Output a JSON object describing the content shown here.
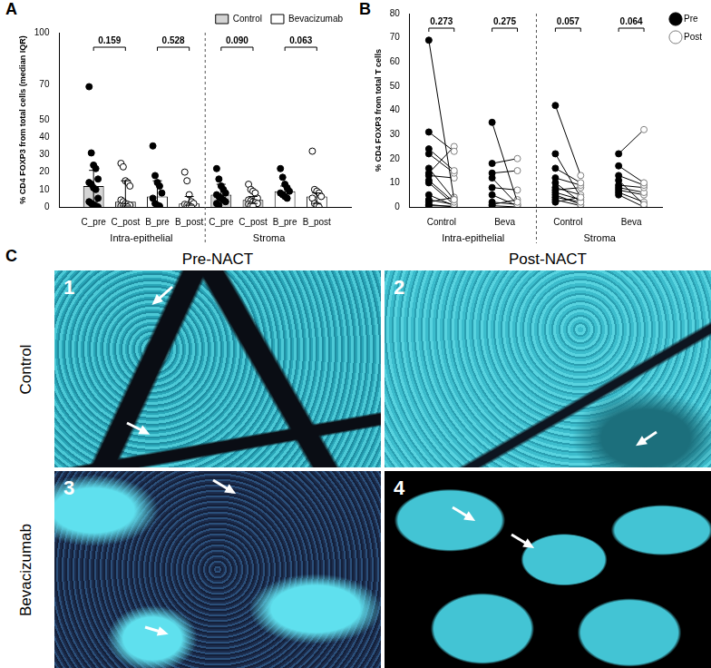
{
  "chart_data": [
    {
      "panel": "A",
      "type": "bar",
      "ylabel": "% CD4 FOXP3 from total cells (median IQR)",
      "categories": [
        "C_pre",
        "C_post",
        "B_pre",
        "B_post",
        "C_pre",
        "C_post",
        "B_pre",
        "B_post"
      ],
      "group_labels": [
        "Intra-epithelial",
        "Stroma"
      ],
      "series": [
        {
          "name": "Control",
          "color": "#d4d4d4"
        },
        {
          "name": "Bevacizumab",
          "color": "#ffffff"
        }
      ],
      "bar_series": [
        "Control",
        "Control",
        "Bevacizumab",
        "Bevacizumab",
        "Control",
        "Control",
        "Bevacizumab",
        "Bevacizumab"
      ],
      "values": [
        12,
        3,
        6,
        2,
        7,
        4,
        9,
        6
      ],
      "iqr": [
        [
          3,
          21
        ],
        [
          0.5,
          15
        ],
        [
          1,
          15
        ],
        [
          1,
          6
        ],
        [
          4,
          13
        ],
        [
          2,
          6
        ],
        [
          6,
          12
        ],
        [
          2,
          8
        ]
      ],
      "points": [
        [
          69,
          31,
          24,
          22,
          16,
          14,
          13,
          11,
          10,
          5,
          3,
          2,
          1,
          0.5,
          0
        ],
        [
          25,
          23,
          15,
          14,
          12,
          4,
          3,
          2,
          1.5,
          1,
          0.5,
          0.3,
          0.2,
          0
        ],
        [
          35,
          18,
          14,
          12,
          8,
          5,
          2,
          1,
          0.5
        ],
        [
          20,
          15,
          7,
          3,
          2,
          1.5,
          1,
          0.5,
          0
        ],
        [
          22,
          16,
          12,
          10,
          8,
          7,
          6,
          5,
          4,
          3,
          2,
          1
        ],
        [
          13,
          10,
          9,
          8,
          5,
          4,
          3.5,
          3,
          2.5,
          2,
          1.5,
          1,
          0.5
        ],
        [
          22,
          17,
          13,
          11,
          9,
          8,
          7,
          6,
          5
        ],
        [
          32,
          10,
          9,
          8,
          6,
          5,
          2,
          1,
          0
        ]
      ],
      "markers": [
        "filled",
        "open",
        "filled",
        "open",
        "filled",
        "open",
        "filled",
        "open"
      ],
      "comparisons": [
        {
          "categories": [
            0,
            1
          ],
          "p": 0.159
        },
        {
          "categories": [
            2,
            3
          ],
          "p": 0.528
        },
        {
          "categories": [
            4,
            5
          ],
          "p": {
            "value": 0.09,
            "label": "0.090"
          }
        },
        {
          "categories": [
            6,
            7
          ],
          "p": 0.063
        }
      ],
      "ylim": [
        0,
        100
      ],
      "yticks": [
        0,
        10,
        20,
        30,
        40,
        50,
        70,
        100
      ],
      "grid": false,
      "legend": "top right"
    },
    {
      "panel": "B",
      "type": "line",
      "ylabel": "% CD4 FOXP3 from total T cells",
      "categories": [
        "Control",
        "Beva",
        "Control",
        "Beva"
      ],
      "group_labels": [
        "Intra-epithelial",
        "Stroma"
      ],
      "series": [
        {
          "name": "Pre",
          "color": "#000000",
          "marker": "filled"
        },
        {
          "name": "Post",
          "color": "#808080",
          "marker": "open"
        }
      ],
      "pairs": [
        [
          [
            69,
            3
          ],
          [
            31,
            23
          ],
          [
            24,
            15
          ],
          [
            22,
            14
          ],
          [
            16,
            3
          ],
          [
            14,
            25
          ],
          [
            13,
            12
          ],
          [
            11,
            2
          ],
          [
            10,
            1
          ],
          [
            5,
            0.5
          ],
          [
            3,
            1
          ],
          [
            2,
            4
          ],
          [
            1,
            0
          ],
          [
            0.5,
            0.3
          ]
        ],
        [
          [
            35,
            2
          ],
          [
            18,
            20
          ],
          [
            14,
            15
          ],
          [
            12,
            1
          ],
          [
            8,
            7
          ],
          [
            5,
            0.5
          ],
          [
            2,
            1
          ],
          [
            1,
            3
          ],
          [
            0.5,
            0
          ]
        ],
        [
          [
            42,
            13
          ],
          [
            22,
            4
          ],
          [
            16,
            10
          ],
          [
            12,
            9
          ],
          [
            10,
            2
          ],
          [
            8,
            5
          ],
          [
            7,
            8
          ],
          [
            6,
            3
          ],
          [
            5,
            1
          ],
          [
            4,
            2
          ],
          [
            3,
            0.5
          ],
          [
            2,
            4
          ]
        ],
        [
          [
            22,
            32
          ],
          [
            17,
            10
          ],
          [
            13,
            9
          ],
          [
            11,
            1
          ],
          [
            9,
            8
          ],
          [
            8,
            6
          ],
          [
            7,
            5
          ],
          [
            6,
            2
          ],
          [
            5,
            0
          ]
        ]
      ],
      "comparisons": [
        {
          "category": 0,
          "p": 0.273
        },
        {
          "category": 1,
          "p": 0.275
        },
        {
          "category": 2,
          "p": 0.057
        },
        {
          "category": 3,
          "p": 0.064
        }
      ],
      "ylim": [
        0,
        80
      ],
      "yticks": [
        0,
        10,
        20,
        30,
        40,
        50,
        60,
        70,
        80
      ],
      "grid": false,
      "legend": "right"
    }
  ],
  "image_panel": {
    "panel": "C",
    "columns": [
      "Pre-NACT",
      "Post-NACT"
    ],
    "rows": [
      "Control",
      "Bevacizumab"
    ],
    "numbers": [
      1,
      2,
      3,
      4
    ]
  }
}
